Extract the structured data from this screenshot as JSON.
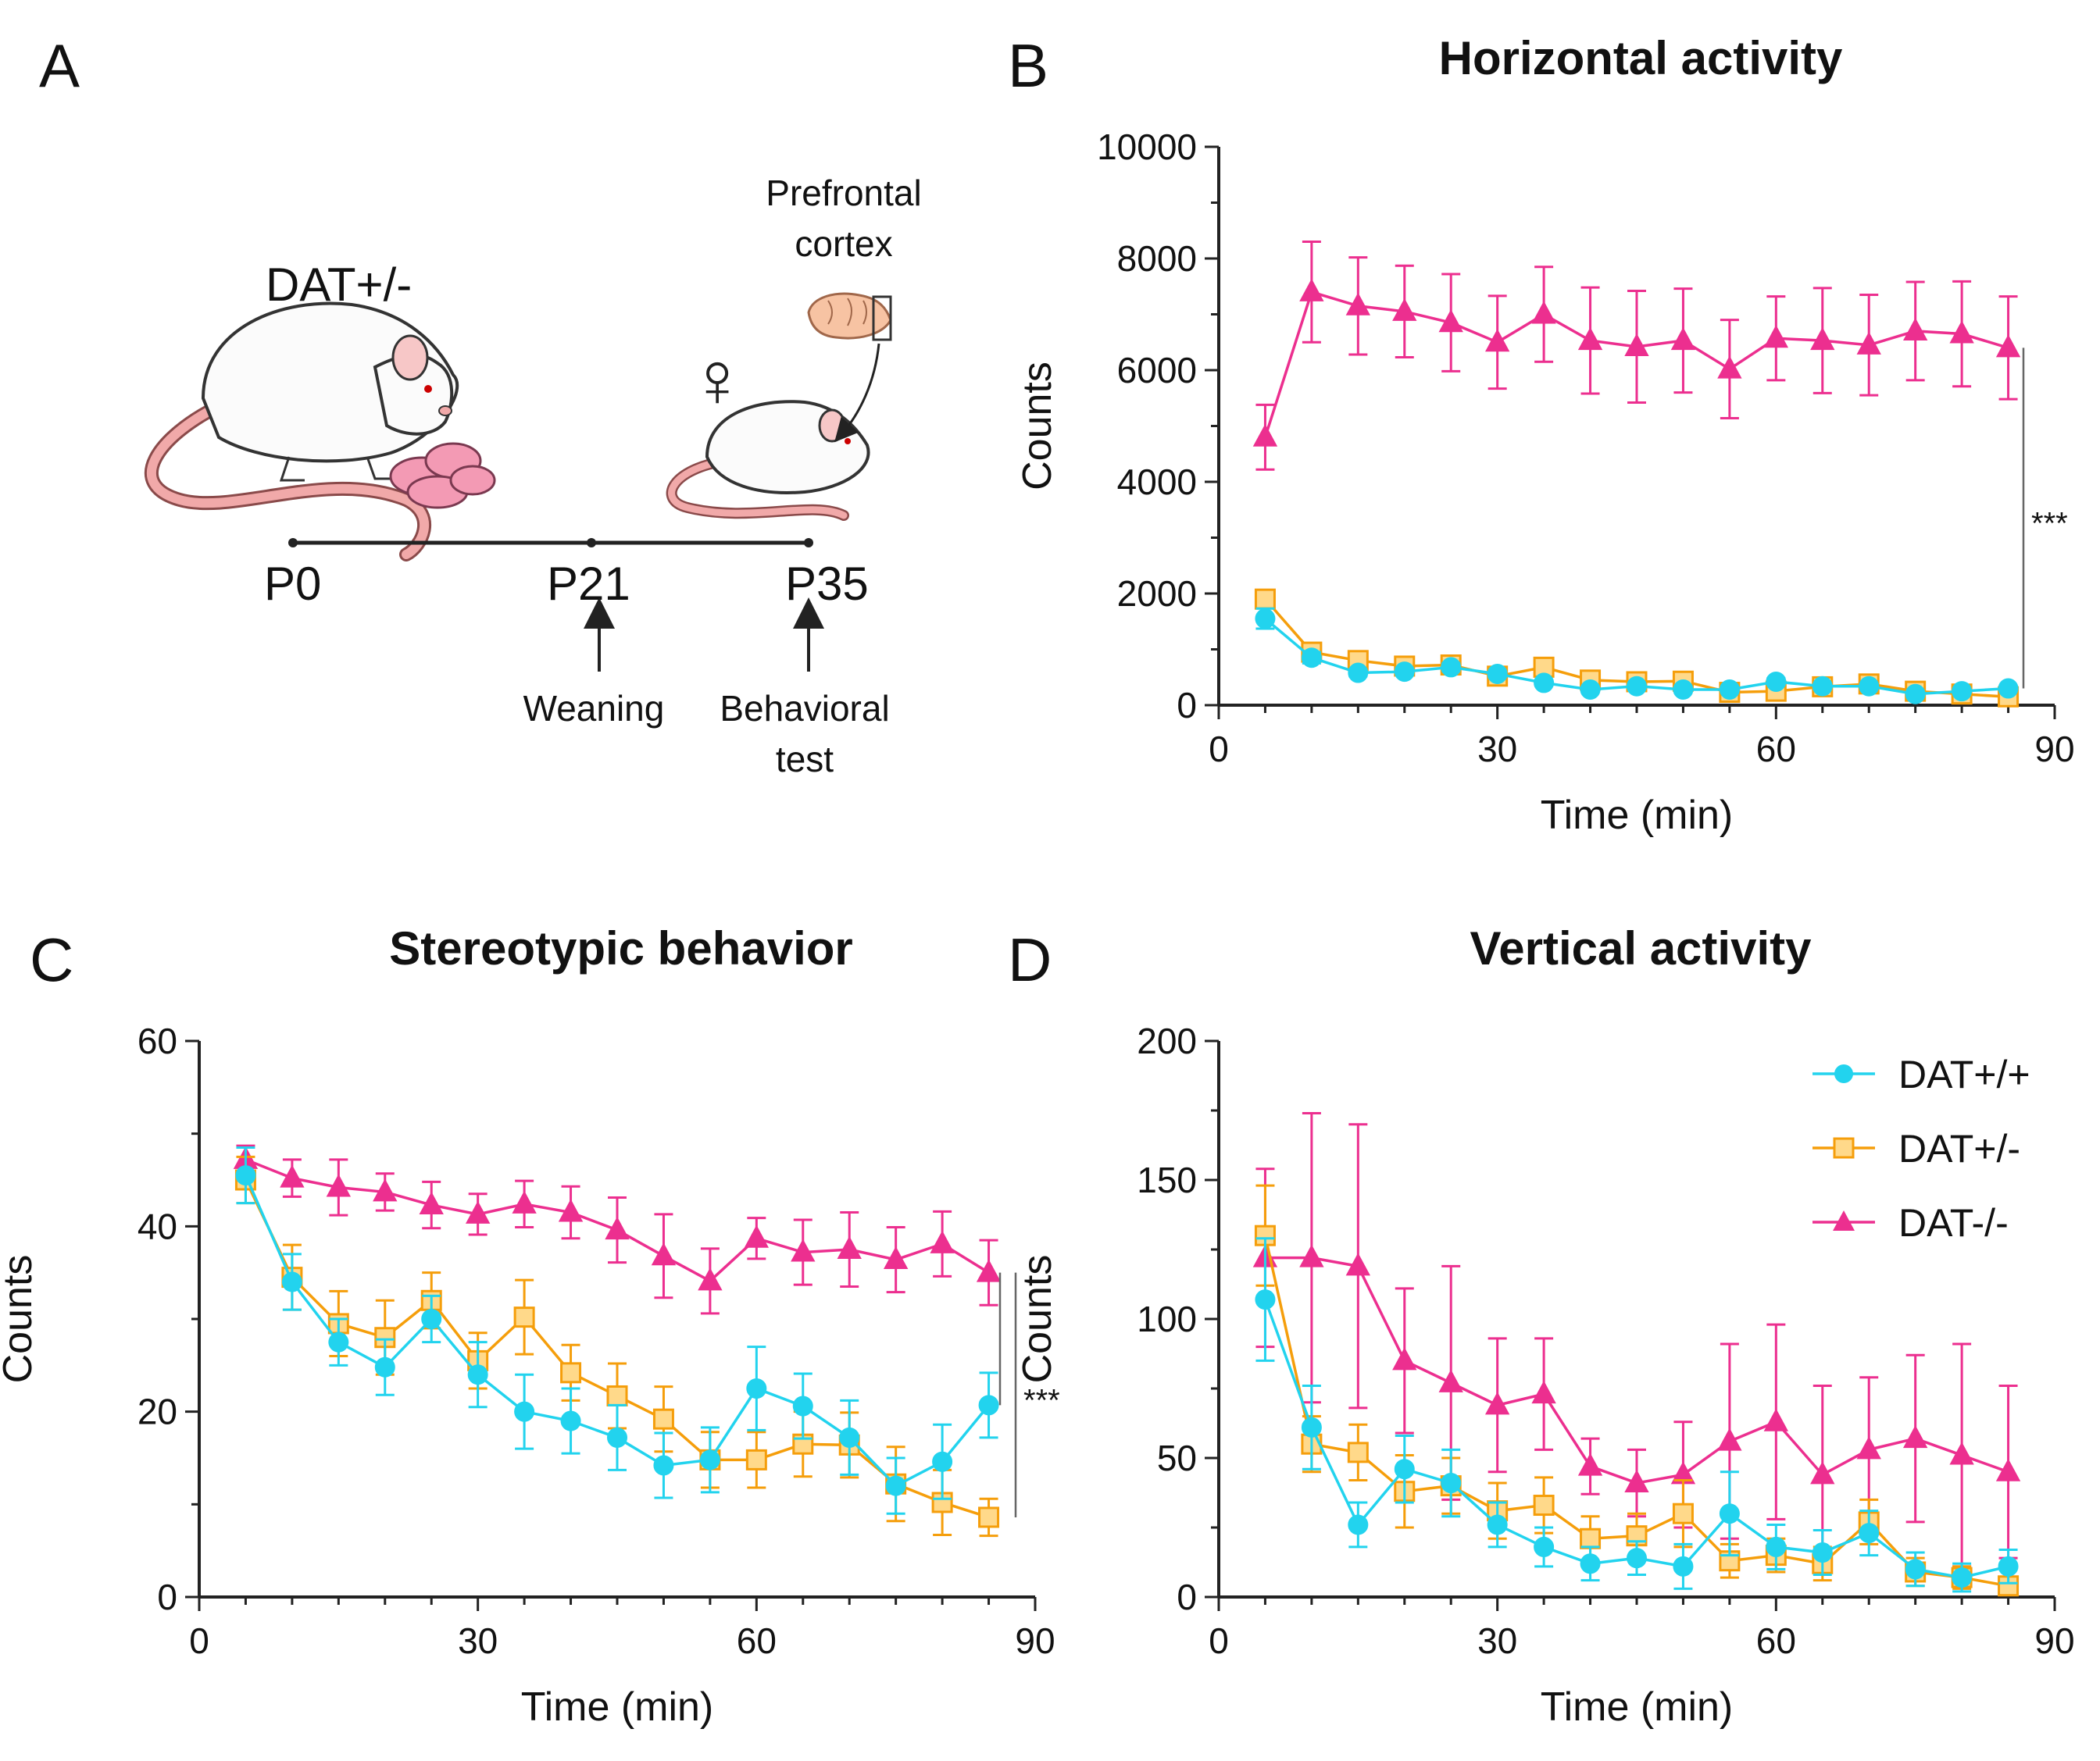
{
  "panel_letters": {
    "a": "A",
    "b": "B",
    "c": "C",
    "d": "D"
  },
  "panel_a": {
    "genotype": "DAT+/-",
    "female_symbol": "♀",
    "tissue_line1": "Prefrontal",
    "tissue_line2": "cortex",
    "timepoints": [
      "P0",
      "P21",
      "P35"
    ],
    "event1": "Weaning",
    "event2_line1": "Behavioral",
    "event2_line2": "test"
  },
  "colors": {
    "wt": "#22d3ee",
    "het": "#f59e0b",
    "ko": "#ec2f8f",
    "het_fill": "#ffd98a",
    "axis": "#222222"
  },
  "chart_data": [
    {
      "id": "B",
      "type": "line",
      "title": "Horizontal activity",
      "xlabel": "Time (min)",
      "ylabel": "Counts",
      "xlim": [
        0,
        90
      ],
      "ylim": [
        0,
        10000
      ],
      "xticks": [
        0,
        30,
        60,
        90
      ],
      "yticks": [
        0,
        2000,
        4000,
        6000,
        8000,
        10000
      ],
      "x": [
        5,
        10,
        15,
        20,
        25,
        30,
        35,
        40,
        45,
        50,
        55,
        60,
        65,
        70,
        75,
        80,
        85
      ],
      "series": [
        {
          "name": "DAT+/+",
          "key": "wt",
          "marker": "circle",
          "values": [
            1550,
            850,
            580,
            600,
            680,
            560,
            400,
            280,
            340,
            280,
            280,
            420,
            340,
            340,
            200,
            250,
            300
          ],
          "errors": [
            180,
            100,
            60,
            60,
            70,
            60,
            50,
            40,
            40,
            40,
            40,
            60,
            40,
            40,
            30,
            30,
            40
          ]
        },
        {
          "name": "DAT+/-",
          "key": "het",
          "marker": "square",
          "values": [
            1900,
            950,
            800,
            700,
            720,
            520,
            680,
            450,
            420,
            430,
            230,
            250,
            330,
            380,
            250,
            200,
            150
          ],
          "errors": [
            120,
            100,
            80,
            70,
            80,
            60,
            80,
            60,
            60,
            60,
            40,
            40,
            40,
            40,
            30,
            30,
            30
          ]
        },
        {
          "name": "DAT-/-",
          "key": "ko",
          "marker": "triangle",
          "values": [
            4800,
            7400,
            7150,
            7050,
            6850,
            6500,
            7000,
            6530,
            6420,
            6530,
            6020,
            6570,
            6530,
            6450,
            6700,
            6650,
            6400
          ],
          "errors": [
            580,
            900,
            870,
            820,
            870,
            830,
            850,
            950,
            1000,
            930,
            880,
            750,
            940,
            900,
            880,
            940,
            920
          ]
        }
      ],
      "significance": "***"
    },
    {
      "id": "C",
      "type": "line",
      "title": "Stereotypic behavior",
      "xlabel": "Time (min)",
      "ylabel": "Counts",
      "xlim": [
        0,
        90
      ],
      "ylim": [
        0,
        60
      ],
      "xticks": [
        0,
        30,
        60,
        90
      ],
      "yticks": [
        0,
        20,
        40,
        60
      ],
      "x": [
        5,
        10,
        15,
        20,
        25,
        30,
        35,
        40,
        45,
        50,
        55,
        60,
        65,
        70,
        75,
        80,
        85
      ],
      "series": [
        {
          "name": "DAT+/+",
          "key": "wt",
          "marker": "circle",
          "values": [
            45.5,
            34.0,
            27.5,
            24.8,
            30.0,
            24.0,
            20.0,
            19.0,
            17.2,
            14.2,
            14.8,
            22.5,
            20.6,
            17.2,
            12.0,
            14.6,
            20.7
          ],
          "errors": [
            3.0,
            3.0,
            2.5,
            3.0,
            2.5,
            3.5,
            4.0,
            3.5,
            3.5,
            3.5,
            3.5,
            4.5,
            3.5,
            4.0,
            3.0,
            4.0,
            3.5
          ]
        },
        {
          "name": "DAT+/-",
          "key": "het",
          "marker": "square",
          "values": [
            45.0,
            34.5,
            29.5,
            28.0,
            32.0,
            25.5,
            30.2,
            24.2,
            21.7,
            19.2,
            14.8,
            14.8,
            16.5,
            16.4,
            12.2,
            10.2,
            8.6
          ],
          "errors": [
            2.5,
            3.5,
            3.5,
            4.0,
            3.0,
            3.0,
            4.0,
            3.0,
            3.5,
            3.5,
            3.0,
            3.0,
            3.5,
            3.5,
            4.0,
            3.5,
            2.0
          ]
        },
        {
          "name": "DAT-/-",
          "key": "ko",
          "marker": "triangle",
          "values": [
            47.2,
            45.2,
            44.2,
            43.7,
            42.3,
            41.3,
            42.4,
            41.5,
            39.6,
            36.8,
            34.1,
            38.7,
            37.2,
            37.5,
            36.4,
            38.1,
            35.0
          ],
          "errors": [
            1.5,
            2.0,
            3.0,
            2.0,
            2.5,
            2.2,
            2.5,
            2.8,
            3.5,
            4.5,
            3.5,
            2.2,
            3.5,
            4.0,
            3.5,
            3.5,
            3.5
          ]
        }
      ],
      "significance": "***"
    },
    {
      "id": "D",
      "type": "line",
      "title": "Vertical activity",
      "xlabel": "Time (min)",
      "ylabel": "Counts",
      "xlim": [
        0,
        90
      ],
      "ylim": [
        0,
        200
      ],
      "xticks": [
        0,
        30,
        60,
        90
      ],
      "yticks": [
        0,
        50,
        100,
        150,
        200
      ],
      "x": [
        5,
        10,
        15,
        20,
        25,
        30,
        35,
        40,
        45,
        50,
        55,
        60,
        65,
        70,
        75,
        80,
        85
      ],
      "series": [
        {
          "name": "DAT+/+",
          "key": "wt",
          "marker": "circle",
          "values": [
            107,
            61,
            26,
            46,
            41,
            26,
            18,
            12,
            14,
            11,
            30,
            18,
            16,
            23,
            10,
            7,
            11
          ],
          "errors": [
            22,
            15,
            8,
            12,
            12,
            8,
            7,
            6,
            6,
            8,
            15,
            8,
            8,
            8,
            6,
            5,
            6
          ]
        },
        {
          "name": "DAT+/-",
          "key": "het",
          "marker": "square",
          "values": [
            130,
            55,
            52,
            38,
            40,
            31,
            33,
            21,
            22,
            30,
            13,
            15,
            12,
            27,
            9,
            7,
            4
          ],
          "errors": [
            18,
            10,
            10,
            13,
            10,
            10,
            10,
            8,
            8,
            12,
            6,
            6,
            6,
            8,
            5,
            4,
            3
          ]
        },
        {
          "name": "DAT-/-",
          "key": "ko",
          "marker": "triangle",
          "values": [
            122,
            122,
            119,
            85,
            77,
            69,
            73,
            47,
            41,
            44,
            56,
            63,
            44,
            53,
            57,
            51,
            45
          ],
          "errors": [
            32,
            52,
            51,
            26,
            42,
            24,
            20,
            10,
            12,
            19,
            35,
            35,
            32,
            26,
            30,
            40,
            31
          ]
        }
      ],
      "legend": {
        "position": "top-right",
        "entries": [
          "DAT+/+",
          "DAT+/-",
          "DAT-/-"
        ]
      }
    }
  ]
}
